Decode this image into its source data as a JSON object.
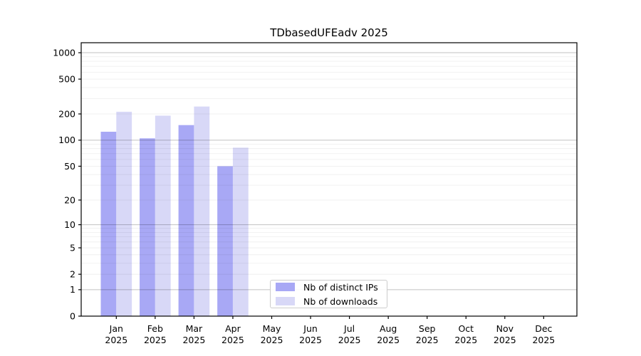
{
  "figure": {
    "title": "TDbasedUFEadv 2025"
  },
  "colors": {
    "distinct_ips": "#a8a8f5",
    "downloads": "#d8d8f7",
    "grid_major": "rgba(0,0,0,0.24)",
    "grid_minor": "rgba(0,0,0,0.07)",
    "axis": "#000000",
    "text": "#000000",
    "legend_border": "#cccccc",
    "background": "#ffffff"
  },
  "legend": {
    "entries": [
      {
        "label": "Nb of distinct IPs",
        "color_key": "distinct_ips"
      },
      {
        "label": "Nb of downloads",
        "color_key": "downloads"
      }
    ],
    "position": "lower center inside plot"
  },
  "chart_data": {
    "type": "bar",
    "title": "TDbasedUFEadv 2025",
    "categories": [
      "Jan 2025",
      "Feb 2025",
      "Mar 2025",
      "Apr 2025",
      "May 2025",
      "Jun 2025",
      "Jul 2025",
      "Aug 2025",
      "Sep 2025",
      "Oct 2025",
      "Nov 2025",
      "Dec 2025"
    ],
    "x_tick_line1": [
      "Jan",
      "Feb",
      "Mar",
      "Apr",
      "May",
      "Jun",
      "Jul",
      "Aug",
      "Sep",
      "Oct",
      "Nov",
      "Dec"
    ],
    "x_tick_line2": [
      "2025",
      "2025",
      "2025",
      "2025",
      "2025",
      "2025",
      "2025",
      "2025",
      "2025",
      "2025",
      "2025",
      "2025"
    ],
    "series": [
      {
        "name": "Nb of distinct IPs",
        "values": [
          125,
          105,
          149,
          50,
          0,
          0,
          0,
          0,
          0,
          0,
          0,
          0
        ]
      },
      {
        "name": "Nb of downloads",
        "values": [
          212,
          191,
          243,
          82,
          0,
          0,
          0,
          0,
          0,
          0,
          0,
          0
        ]
      }
    ],
    "xlabel": "",
    "ylabel": "",
    "y_scale": "log10(1+v)",
    "y_ticks": [
      0,
      1,
      2,
      5,
      10,
      20,
      50,
      100,
      200,
      500,
      1000
    ],
    "y_minor_gridlines": [
      2,
      3,
      4,
      5,
      6,
      7,
      8,
      9,
      20,
      30,
      40,
      50,
      60,
      70,
      80,
      90,
      200,
      300,
      400,
      500,
      600,
      700,
      800,
      900
    ],
    "y_major_gridlines": [
      1,
      10,
      100,
      1000
    ],
    "ylim": [
      0,
      1300
    ],
    "grid": "both",
    "legend_position": "bottom-center"
  }
}
